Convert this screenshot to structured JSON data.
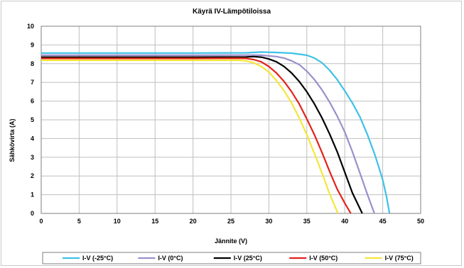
{
  "chart_data": {
    "type": "line",
    "title": "Käyrä IV-Lämpötiloissa",
    "xlabel": "Jännite (V)",
    "ylabel": "Sähkövirta (A)",
    "xlim": [
      0,
      50
    ],
    "ylim": [
      0,
      10
    ],
    "xticks": [
      "0",
      "5",
      "10",
      "15",
      "20",
      "25",
      "30",
      "35",
      "40",
      "45",
      "50"
    ],
    "yticks": [
      "0",
      "1",
      "2",
      "3",
      "4",
      "5",
      "6",
      "7",
      "8",
      "9",
      "10"
    ],
    "grid": true,
    "legend_position": "bottom",
    "series": [
      {
        "name": "I-V (-25°C)",
        "color": "#3fc1e6",
        "points": [
          [
            0,
            8.57
          ],
          [
            10,
            8.57
          ],
          [
            20,
            8.57
          ],
          [
            27,
            8.58
          ],
          [
            29,
            8.62
          ],
          [
            31,
            8.6
          ],
          [
            33,
            8.56
          ],
          [
            35,
            8.45
          ],
          [
            36,
            8.3
          ],
          [
            37,
            8.05
          ],
          [
            38,
            7.65
          ],
          [
            39,
            7.15
          ],
          [
            40,
            6.55
          ],
          [
            41,
            5.9
          ],
          [
            42,
            5.15
          ],
          [
            43,
            4.2
          ],
          [
            44,
            3.1
          ],
          [
            45,
            1.8
          ],
          [
            45.5,
            0.9
          ],
          [
            45.9,
            0
          ]
        ]
      },
      {
        "name": "I-V (0°C)",
        "color": "#9b8fcb",
        "points": [
          [
            0,
            8.45
          ],
          [
            10,
            8.45
          ],
          [
            20,
            8.45
          ],
          [
            27,
            8.46
          ],
          [
            29,
            8.45
          ],
          [
            31,
            8.38
          ],
          [
            32,
            8.3
          ],
          [
            33,
            8.15
          ],
          [
            34,
            7.95
          ],
          [
            35,
            7.6
          ],
          [
            36,
            7.15
          ],
          [
            37,
            6.6
          ],
          [
            38,
            5.95
          ],
          [
            39,
            5.2
          ],
          [
            40,
            4.35
          ],
          [
            41,
            3.3
          ],
          [
            42,
            2.15
          ],
          [
            43,
            1.0
          ],
          [
            43.9,
            0
          ]
        ]
      },
      {
        "name": "I-V (25°C)",
        "color": "#000000",
        "points": [
          [
            0,
            8.35
          ],
          [
            10,
            8.35
          ],
          [
            20,
            8.35
          ],
          [
            27,
            8.36
          ],
          [
            28,
            8.38
          ],
          [
            29,
            8.35
          ],
          [
            30,
            8.25
          ],
          [
            31,
            8.1
          ],
          [
            32,
            7.85
          ],
          [
            33,
            7.5
          ],
          [
            34,
            7.05
          ],
          [
            35,
            6.5
          ],
          [
            36,
            5.85
          ],
          [
            37,
            5.1
          ],
          [
            38,
            4.25
          ],
          [
            39,
            3.3
          ],
          [
            40,
            2.2
          ],
          [
            41,
            1.1
          ],
          [
            42.3,
            0
          ]
        ]
      },
      {
        "name": "I-V (50°C)",
        "color": "#e2231a",
        "points": [
          [
            0,
            8.28
          ],
          [
            10,
            8.28
          ],
          [
            20,
            8.28
          ],
          [
            26,
            8.29
          ],
          [
            27,
            8.28
          ],
          [
            28,
            8.22
          ],
          [
            29,
            8.1
          ],
          [
            30,
            7.85
          ],
          [
            31,
            7.5
          ],
          [
            32,
            7.05
          ],
          [
            33,
            6.5
          ],
          [
            34,
            5.85
          ],
          [
            35,
            5.05
          ],
          [
            36,
            4.2
          ],
          [
            37,
            3.25
          ],
          [
            38,
            2.25
          ],
          [
            39,
            1.3
          ],
          [
            40,
            0.55
          ],
          [
            40.8,
            0
          ]
        ]
      },
      {
        "name": "I-V (75°C)",
        "color": "#f5e63a",
        "points": [
          [
            0,
            8.18
          ],
          [
            10,
            8.18
          ],
          [
            20,
            8.18
          ],
          [
            26,
            8.18
          ],
          [
            27,
            8.15
          ],
          [
            28,
            8.05
          ],
          [
            29,
            7.85
          ],
          [
            30,
            7.55
          ],
          [
            31,
            7.1
          ],
          [
            32,
            6.55
          ],
          [
            33,
            5.9
          ],
          [
            34,
            5.1
          ],
          [
            35,
            4.2
          ],
          [
            36,
            3.2
          ],
          [
            37,
            2.15
          ],
          [
            38,
            1.05
          ],
          [
            39.1,
            0
          ]
        ]
      }
    ]
  }
}
